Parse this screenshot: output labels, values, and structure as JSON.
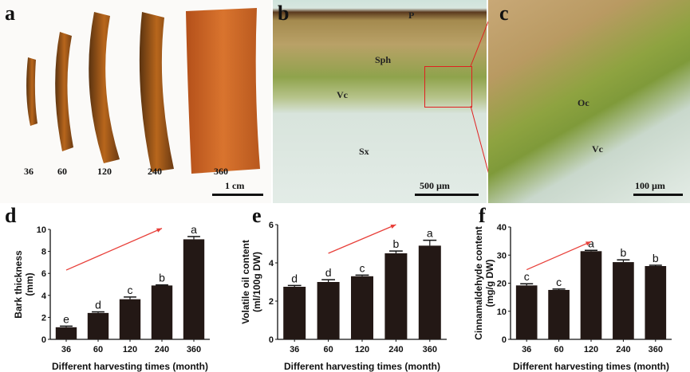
{
  "panels": {
    "a": {
      "label": "a",
      "sample_labels": [
        "36",
        "60",
        "120",
        "240",
        "360"
      ],
      "scale_bar": "1 cm"
    },
    "b": {
      "label": "b",
      "tissue_labels": {
        "p": "P",
        "sph": "Sph",
        "vc": "Vc",
        "sx": "Sx"
      },
      "scale_bar": "500 µm",
      "highlight_color": "#e02020"
    },
    "c": {
      "label": "c",
      "tissue_labels": {
        "oc": "Oc",
        "vc": "Vc"
      },
      "scale_bar": "100 µm"
    }
  },
  "chart_data": [
    {
      "panel_label": "d",
      "type": "bar",
      "categories": [
        "36",
        "60",
        "120",
        "240",
        "360"
      ],
      "values": [
        1.1,
        2.4,
        3.65,
        4.9,
        9.1
      ],
      "errors": [
        0.1,
        0.1,
        0.2,
        0.05,
        0.25
      ],
      "significance": [
        "e",
        "d",
        "c",
        "b",
        "a"
      ],
      "xlabel": "Different harvesting times (month)",
      "ylabel_lines": [
        "Bark thickness",
        "(mm)"
      ],
      "ylim": [
        0,
        10
      ],
      "yticks": [
        0,
        2,
        4,
        6,
        8,
        10
      ],
      "bar_color": "#231815",
      "trend_arrow": {
        "from": [
          36,
          6.3
        ],
        "to": [
          240,
          10.1
        ],
        "color": "#e8403a"
      }
    },
    {
      "panel_label": "e",
      "type": "bar",
      "categories": [
        "36",
        "60",
        "120",
        "240",
        "360"
      ],
      "values": [
        2.75,
        3.0,
        3.3,
        4.5,
        4.9
      ],
      "errors": [
        0.07,
        0.12,
        0.06,
        0.12,
        0.28
      ],
      "significance": [
        "d",
        "d",
        "c",
        "b",
        "a"
      ],
      "xlabel": "Different harvesting times (month)",
      "ylabel_lines": [
        "Volatile oil content",
        "(ml/100g DW)"
      ],
      "ylim": [
        0,
        6
      ],
      "yticks": [
        0,
        2,
        4,
        6
      ],
      "bar_color": "#231815",
      "trend_arrow": {
        "from": [
          60,
          4.5
        ],
        "to": [
          240,
          6.0
        ],
        "color": "#e8403a"
      }
    },
    {
      "panel_label": "f",
      "type": "bar",
      "categories": [
        "36",
        "60",
        "120",
        "240",
        "360"
      ],
      "values": [
        19.2,
        17.6,
        31.4,
        27.5,
        26.1
      ],
      "errors": [
        0.6,
        0.3,
        0.3,
        0.8,
        0.3
      ],
      "significance": [
        "c",
        "c",
        "a",
        "b",
        "b"
      ],
      "xlabel": "Different harvesting times (month)",
      "ylabel_lines": [
        "Cinnamaldehyde content",
        "(mg/g DW)"
      ],
      "ylim": [
        0,
        40
      ],
      "yticks": [
        0,
        10,
        20,
        30,
        40
      ],
      "bar_color": "#231815",
      "trend_arrow": {
        "from": [
          36,
          24.8
        ],
        "to": [
          120,
          34.8
        ],
        "color": "#e8403a"
      }
    }
  ]
}
